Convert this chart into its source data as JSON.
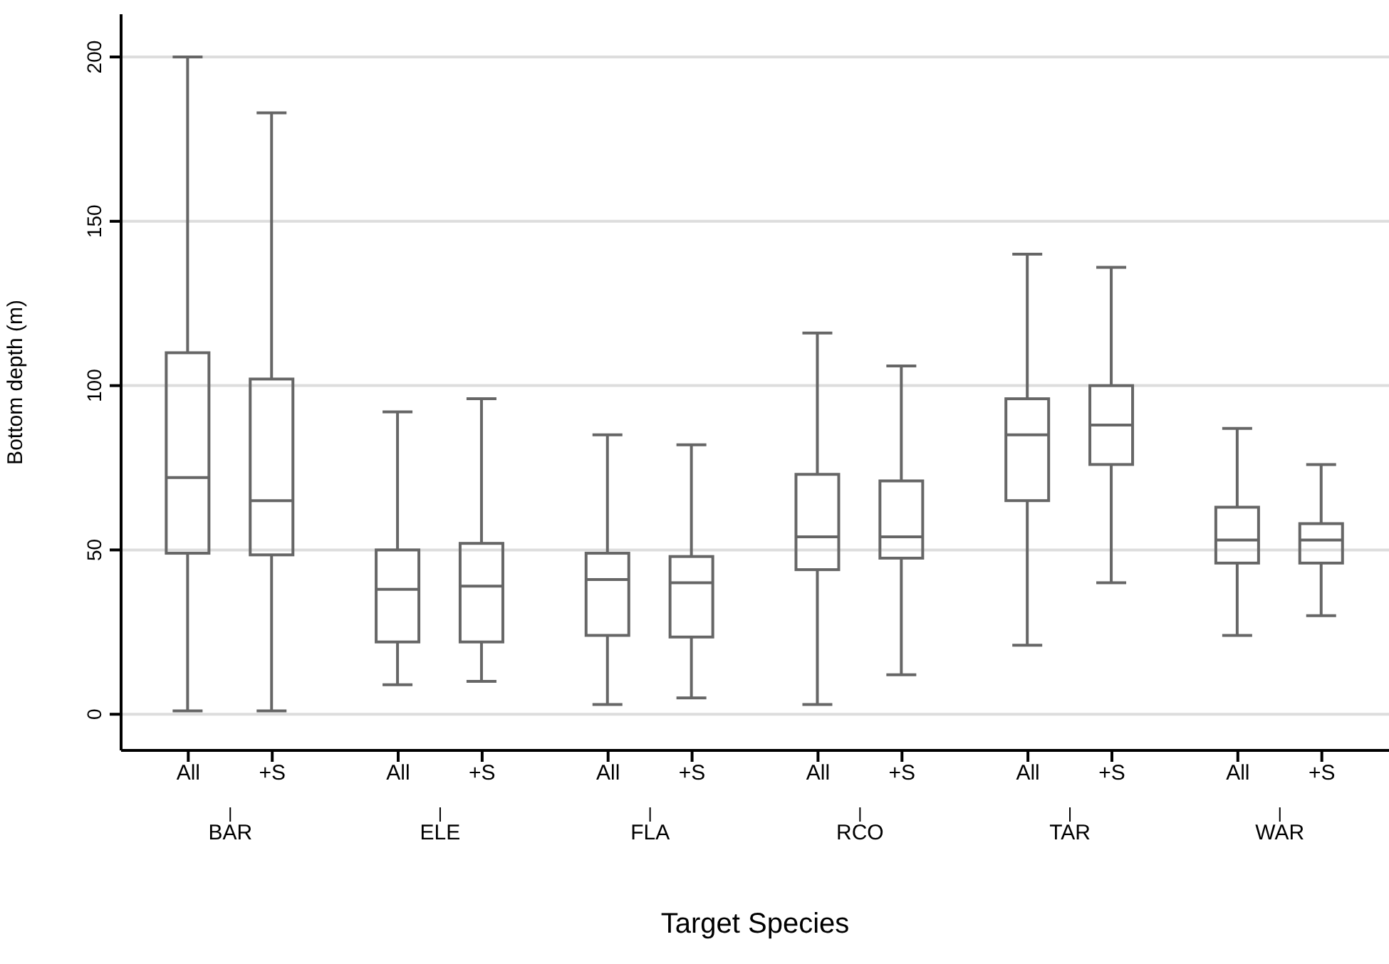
{
  "chart_data": {
    "type": "box",
    "xlabel": "Target Species",
    "ylabel": "Bottom depth (m)",
    "categories": [
      "All",
      "+S",
      "All",
      "+S",
      "All",
      "+S",
      "All",
      "+S",
      "All",
      "+S",
      "All",
      "+S"
    ],
    "annotations": [
      "BAR",
      "ELE",
      "FLA",
      "RCO",
      "TAR",
      "WAR"
    ],
    "color": "#666666",
    "boxes": [
      {
        "low": 1,
        "q1": 49,
        "median": 72,
        "q3": 110,
        "high": 200
      },
      {
        "low": 1,
        "q1": 48.5,
        "median": 65,
        "q3": 102,
        "high": 183
      },
      {
        "low": 9,
        "q1": 22,
        "median": 38,
        "q3": 50,
        "high": 92
      },
      {
        "low": 10,
        "q1": 22,
        "median": 39,
        "q3": 52,
        "high": 96
      },
      {
        "low": 3,
        "q1": 24,
        "median": 41,
        "q3": 49,
        "high": 85
      },
      {
        "low": 5,
        "q1": 23.5,
        "median": 40,
        "q3": 48,
        "high": 82
      },
      {
        "low": 3,
        "q1": 44,
        "median": 54,
        "q3": 73,
        "high": 116
      },
      {
        "low": 12,
        "q1": 47.5,
        "median": 54,
        "q3": 71,
        "high": 106
      },
      {
        "low": 21,
        "q1": 65,
        "median": 85,
        "q3": 96,
        "high": 140
      },
      {
        "low": 40,
        "q1": 76,
        "median": 88,
        "q3": 100,
        "high": 136
      },
      {
        "low": 24,
        "q1": 46,
        "median": 53,
        "q3": 63,
        "high": 87
      },
      {
        "low": 30,
        "q1": 46,
        "median": 53,
        "q3": 58,
        "high": 76
      }
    ],
    "ylim": [
      -11,
      213
    ],
    "yticks": [
      0,
      50,
      100,
      150,
      200
    ],
    "grid": "y"
  }
}
